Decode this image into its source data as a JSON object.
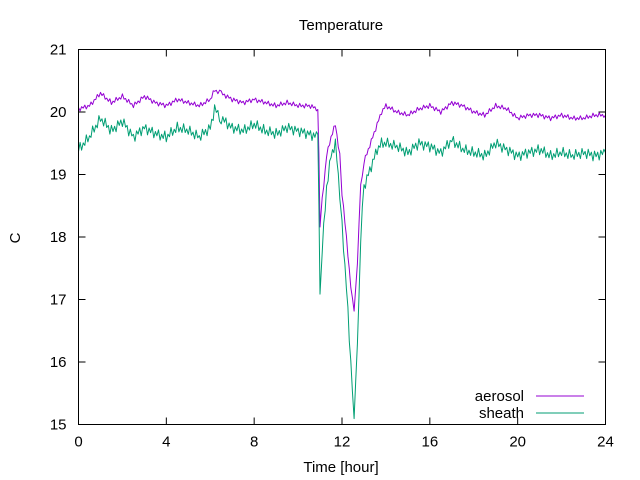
{
  "chart_data": {
    "type": "line",
    "title": "Temperature",
    "xlabel": "Time [hour]",
    "ylabel": "C",
    "xlim": [
      0,
      24
    ],
    "ylim": [
      15,
      21
    ],
    "xticks": [
      0,
      4,
      8,
      12,
      16,
      20,
      24
    ],
    "yticks": [
      15,
      16,
      17,
      18,
      19,
      20,
      21
    ],
    "grid": false,
    "legend_position": "bottom-right",
    "series": [
      {
        "name": "aerosol",
        "color": "#9400d3",
        "x": [
          0,
          0.5,
          1.0,
          1.5,
          2.0,
          2.5,
          3.0,
          3.5,
          4.0,
          4.5,
          5.0,
          5.5,
          6.0,
          6.2,
          6.5,
          7.0,
          7.5,
          8.0,
          8.5,
          9.0,
          9.5,
          10.0,
          10.5,
          10.9,
          10.95,
          11.0,
          11.1,
          11.3,
          11.5,
          11.7,
          11.9,
          12.0,
          12.2,
          12.4,
          12.55,
          12.7,
          12.85,
          13.0,
          13.2,
          13.4,
          13.6,
          13.8,
          14.0,
          14.5,
          15.0,
          15.5,
          16.0,
          16.5,
          17.0,
          17.5,
          18.0,
          18.5,
          19.0,
          19.5,
          20.0,
          20.5,
          21.0,
          21.5,
          22.0,
          22.5,
          23.0,
          23.5,
          24.0
        ],
        "values": [
          20.05,
          20.1,
          20.3,
          20.15,
          20.25,
          20.1,
          20.25,
          20.15,
          20.1,
          20.2,
          20.15,
          20.1,
          20.2,
          20.35,
          20.3,
          20.2,
          20.15,
          20.2,
          20.15,
          20.1,
          20.15,
          20.1,
          20.1,
          20.05,
          19.3,
          18.2,
          18.6,
          19.3,
          19.6,
          19.8,
          19.3,
          18.7,
          18.0,
          17.2,
          16.8,
          17.6,
          18.8,
          19.2,
          19.4,
          19.6,
          19.8,
          20.0,
          20.1,
          20.0,
          19.95,
          20.05,
          20.1,
          20.0,
          20.15,
          20.1,
          20.0,
          19.95,
          20.1,
          20.05,
          19.9,
          19.95,
          19.95,
          19.9,
          19.95,
          19.9,
          19.9,
          19.95,
          19.95
        ]
      },
      {
        "name": "sheath",
        "color": "#009e73",
        "x": [
          0,
          0.5,
          1.0,
          1.5,
          2.0,
          2.5,
          3.0,
          3.5,
          4.0,
          4.5,
          5.0,
          5.5,
          6.0,
          6.2,
          6.5,
          7.0,
          7.5,
          8.0,
          8.5,
          9.0,
          9.5,
          10.0,
          10.5,
          10.9,
          10.95,
          11.0,
          11.1,
          11.3,
          11.5,
          11.7,
          11.9,
          12.0,
          12.2,
          12.4,
          12.55,
          12.7,
          12.85,
          13.0,
          13.2,
          13.4,
          13.6,
          13.8,
          14.0,
          14.5,
          15.0,
          15.5,
          16.0,
          16.5,
          17.0,
          17.5,
          18.0,
          18.5,
          19.0,
          19.5,
          20.0,
          20.5,
          21.0,
          21.5,
          22.0,
          22.5,
          23.0,
          23.5,
          24.0
        ],
        "values": [
          19.4,
          19.6,
          19.9,
          19.7,
          19.85,
          19.6,
          19.75,
          19.65,
          19.6,
          19.75,
          19.7,
          19.6,
          19.75,
          20.05,
          19.9,
          19.75,
          19.7,
          19.8,
          19.7,
          19.65,
          19.75,
          19.7,
          19.65,
          19.6,
          18.6,
          17.0,
          17.8,
          18.8,
          19.3,
          19.5,
          18.7,
          18.2,
          17.2,
          16.0,
          15.15,
          16.2,
          18.0,
          18.8,
          19.0,
          19.2,
          19.4,
          19.5,
          19.5,
          19.45,
          19.35,
          19.5,
          19.45,
          19.35,
          19.55,
          19.4,
          19.35,
          19.3,
          19.5,
          19.4,
          19.3,
          19.35,
          19.4,
          19.3,
          19.35,
          19.3,
          19.35,
          19.3,
          19.35
        ]
      }
    ]
  }
}
